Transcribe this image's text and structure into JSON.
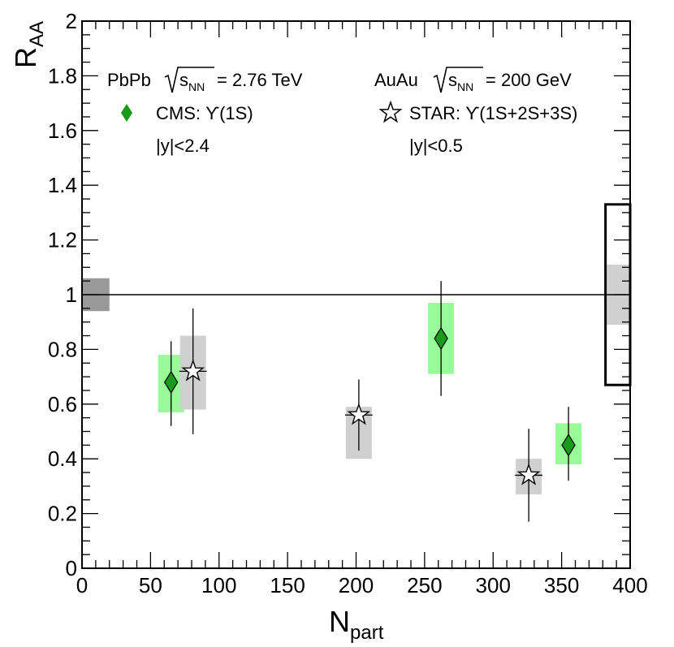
{
  "chart_data": {
    "type": "scatter",
    "xlabel": "N",
    "xlabel_sub": "part",
    "ylabel": "R",
    "ylabel_sub": "AA",
    "xlim": [
      0,
      400
    ],
    "ylim": [
      0,
      2
    ],
    "x_ticks": [
      0,
      50,
      100,
      150,
      200,
      250,
      300,
      350,
      400
    ],
    "y_ticks": [
      0,
      0.2,
      0.4,
      0.6,
      0.8,
      1,
      1.2,
      1.4,
      1.6,
      1.8,
      2
    ],
    "x_tick_labels": [
      "0",
      "50",
      "100",
      "150",
      "200",
      "250",
      "300",
      "350",
      "400"
    ],
    "y_tick_labels": [
      "0",
      "0.2",
      "0.4",
      "0.6",
      "0.8",
      "1",
      "1.2",
      "1.4",
      "1.6",
      "1.8",
      "2"
    ],
    "reference_line": 1,
    "legend": {
      "left": {
        "system": "PbPb",
        "energy": "= 2.76 TeV",
        "series_label": "CMS: ϒ(1S)",
        "rapidity": "|y|<2.4"
      },
      "right": {
        "system": "AuAu",
        "energy": "= 200 GeV",
        "series_label": "STAR: ϒ(1S+2S+3S)",
        "rapidity": "|y|<0.5"
      },
      "sqrt_s": "s",
      "sqrt_s_sub": "NN"
    },
    "series": [
      {
        "name": "CMS: ϒ(1S)",
        "marker": "diamond",
        "color": "#1a9a1a",
        "syst_color": "#98fa98",
        "points": [
          {
            "x": 65,
            "y": 0.68,
            "stat_lo": 0.52,
            "stat_hi": 0.83,
            "syst_lo": 0.57,
            "syst_hi": 0.78
          },
          {
            "x": 262,
            "y": 0.84,
            "stat_lo": 0.63,
            "stat_hi": 1.05,
            "syst_lo": 0.71,
            "syst_hi": 0.97
          },
          {
            "x": 355,
            "y": 0.45,
            "stat_lo": 0.32,
            "stat_hi": 0.59,
            "syst_lo": 0.38,
            "syst_hi": 0.53
          }
        ]
      },
      {
        "name": "STAR: ϒ(1S+2S+3S)",
        "marker": "star",
        "color": "#ffffff",
        "syst_color": "#d0d0d0",
        "points": [
          {
            "x": 81,
            "y": 0.72,
            "x_err": 10,
            "stat_lo": 0.49,
            "stat_hi": 0.95,
            "syst_lo": 0.58,
            "syst_hi": 0.85
          },
          {
            "x": 202,
            "y": 0.56,
            "x_err": 10,
            "stat_lo": 0.43,
            "stat_hi": 0.69,
            "syst_lo": 0.4,
            "syst_hi": 0.59
          },
          {
            "x": 326,
            "y": 0.34,
            "x_err": 10,
            "stat_lo": 0.17,
            "stat_hi": 0.51,
            "syst_lo": 0.27,
            "syst_hi": 0.4
          }
        ]
      }
    ],
    "global_uncertainties": [
      {
        "name": "luminosity-box",
        "x0": 0,
        "x1": 20,
        "y0": 0.94,
        "y1": 1.06,
        "color": "#999999"
      },
      {
        "name": "star-global-box",
        "x0": 383,
        "x1": 400,
        "y0": 0.89,
        "y1": 1.11,
        "color": "#d0d0d0"
      },
      {
        "name": "star-outline-box",
        "x0": 382,
        "x1": 400,
        "y0": 0.67,
        "y1": 1.33,
        "color": "#000000"
      }
    ]
  }
}
